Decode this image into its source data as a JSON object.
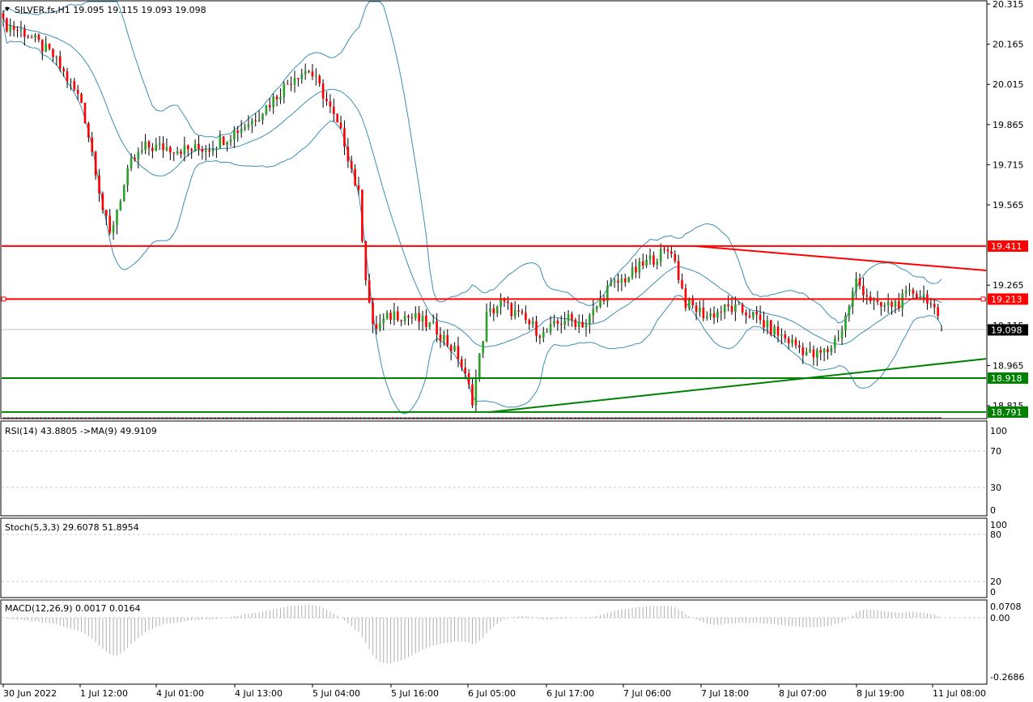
{
  "header": {
    "symbol_line": "SILVER.fs,H1  19.095 19.115 19.093 19.098"
  },
  "colors": {
    "bull": "#2ba02b",
    "bear": "#ff0000",
    "band": "#3a8fb7",
    "resistance": "#ff0000",
    "support": "#008000",
    "rsi_line": "#d60000",
    "rsi_ma": "#00007f",
    "stoch_main": "#3ab5c8",
    "stoch_signal": "#ff0000",
    "macd_hist": "#b0b0b0",
    "macd_signal": "#c00000"
  },
  "price_axis": {
    "labels": [
      "20.315",
      "20.165",
      "20.015",
      "19.865",
      "19.715",
      "19.565",
      "19.265",
      "19.115",
      "18.965",
      "18.815"
    ],
    "range": [
      18.78,
      20.32
    ]
  },
  "levels": {
    "resistance_1": "19.411",
    "resistance_2": "19.213",
    "current": "19.098",
    "support_1": "18.918",
    "support_2": "18.791"
  },
  "time_axis": {
    "labels": [
      "30 Jun 2022",
      "1 Jul 12:00",
      "4 Jul 01:00",
      "4 Jul 13:00",
      "5 Jul 04:00",
      "5 Jul 16:00",
      "6 Jul 05:00",
      "6 Jul 17:00",
      "7 Jul 06:00",
      "7 Jul 18:00",
      "8 Jul 07:00",
      "8 Jul 19:00",
      "11 Jul 08:00"
    ]
  },
  "rsi": {
    "title": "RSI(14) 43.8805  ->MA(9) 49.9109",
    "levels": [
      "100",
      "70",
      "30",
      "0"
    ]
  },
  "stoch": {
    "title": "Stoch(5,3,3) 29.6078 51.8954",
    "levels": [
      "100",
      "80",
      "20",
      "0"
    ]
  },
  "macd": {
    "title": "MACD(12,26,9) 0.0017 0.0164",
    "levels": [
      "0.0708",
      "0.00",
      "-0.2686"
    ]
  },
  "chart_data": {
    "type": "candlestick",
    "symbol": "SILVER.fs",
    "timeframe": "H1",
    "last": {
      "open": 19.095,
      "high": 19.115,
      "low": 19.093,
      "close": 19.098
    },
    "key_closes": [
      {
        "x": "30 Jun 2022",
        "y": 20.24
      },
      {
        "x": "1 Jul 12:00",
        "y": 19.45
      },
      {
        "x": "4 Jul 01:00",
        "y": 19.78
      },
      {
        "x": "4 Jul 13:00",
        "y": 19.85
      },
      {
        "x": "5 Jul 04:00",
        "y": 20.05
      },
      {
        "x": "5 Jul 16:00",
        "y": 19.1
      },
      {
        "x": "6 Jul 05:00",
        "y": 18.84
      },
      {
        "x": "6 Jul 17:00",
        "y": 19.16
      },
      {
        "x": "7 Jul 06:00",
        "y": 19.38
      },
      {
        "x": "7 Jul 18:00",
        "y": 19.15
      },
      {
        "x": "8 Jul 07:00",
        "y": 19.02
      },
      {
        "x": "8 Jul 19:00",
        "y": 19.19
      },
      {
        "x": "11 Jul 08:00",
        "y": 19.098
      }
    ],
    "horizontal_levels": [
      19.411,
      19.213,
      18.918,
      18.791
    ],
    "trendlines": [
      {
        "color": "red",
        "from": [
          19.411
        ],
        "to": [
          19.32
        ]
      },
      {
        "color": "green",
        "from": [
          18.79
        ],
        "to": [
          18.99
        ]
      }
    ],
    "indicators": {
      "rsi": {
        "period": 14,
        "value": 43.8805,
        "ma_period": 9,
        "ma_value": 49.9109,
        "ylim": [
          0,
          100
        ]
      },
      "stoch": {
        "params": "5,3,3",
        "main": 29.6078,
        "signal": 51.8954,
        "ylim": [
          0,
          100
        ]
      },
      "macd": {
        "params": "12,26,9",
        "main": 0.0017,
        "signal": 0.0164,
        "ylim": [
          -0.2686,
          0.0708
        ]
      }
    }
  }
}
